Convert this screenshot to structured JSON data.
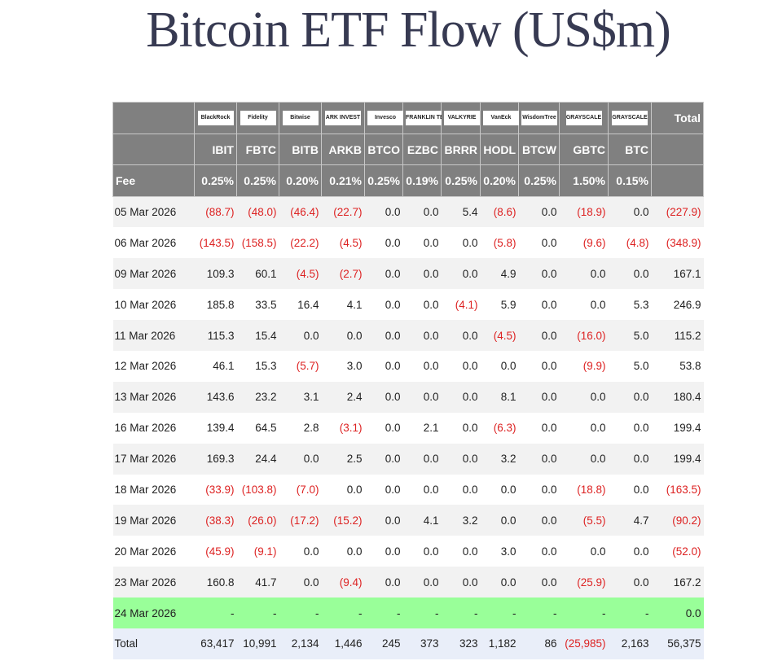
{
  "title": "Bitcoin ETF Flow (US$m)",
  "issuers": [
    "BlackRock",
    "Fidelity",
    "Bitwise",
    "ARK INVEST",
    "Invesco",
    "FRANKLIN TEMPLETON",
    "VALKYRIE",
    "VanEck",
    "WisdomTree",
    "GRAYSCALE",
    "GRAYSCALE"
  ],
  "total_header": "Total",
  "tickers": [
    "IBIT",
    "FBTC",
    "BITB",
    "ARKB",
    "BTCO",
    "EZBC",
    "BRRR",
    "HODL",
    "BTCW",
    "GBTC",
    "BTC"
  ],
  "fee_label": "Fee",
  "fees": [
    "0.25%",
    "0.25%",
    "0.20%",
    "0.21%",
    "0.25%",
    "0.19%",
    "0.25%",
    "0.20%",
    "0.25%",
    "1.50%",
    "0.15%"
  ],
  "colors": {
    "header": "#808080",
    "negative": "#dd2222",
    "pending": "#99ff99",
    "total_row": "#e9eef9"
  },
  "rows": [
    {
      "date": "05 Mar 2026",
      "values": [
        "(88.7)",
        "(48.0)",
        "(46.4)",
        "(22.7)",
        "0.0",
        "0.0",
        "5.4",
        "(8.6)",
        "0.0",
        "(18.9)",
        "0.0",
        "(227.9)"
      ]
    },
    {
      "date": "06 Mar 2026",
      "values": [
        "(143.5)",
        "(158.5)",
        "(22.2)",
        "(4.5)",
        "0.0",
        "0.0",
        "0.0",
        "(5.8)",
        "0.0",
        "(9.6)",
        "(4.8)",
        "(348.9)"
      ]
    },
    {
      "date": "09 Mar 2026",
      "values": [
        "109.3",
        "60.1",
        "(4.5)",
        "(2.7)",
        "0.0",
        "0.0",
        "0.0",
        "4.9",
        "0.0",
        "0.0",
        "0.0",
        "167.1"
      ]
    },
    {
      "date": "10 Mar 2026",
      "values": [
        "185.8",
        "33.5",
        "16.4",
        "4.1",
        "0.0",
        "0.0",
        "(4.1)",
        "5.9",
        "0.0",
        "0.0",
        "5.3",
        "246.9"
      ]
    },
    {
      "date": "11 Mar 2026",
      "values": [
        "115.3",
        "15.4",
        "0.0",
        "0.0",
        "0.0",
        "0.0",
        "0.0",
        "(4.5)",
        "0.0",
        "(16.0)",
        "5.0",
        "115.2"
      ]
    },
    {
      "date": "12 Mar 2026",
      "values": [
        "46.1",
        "15.3",
        "(5.7)",
        "3.0",
        "0.0",
        "0.0",
        "0.0",
        "0.0",
        "0.0",
        "(9.9)",
        "5.0",
        "53.8"
      ]
    },
    {
      "date": "13 Mar 2026",
      "values": [
        "143.6",
        "23.2",
        "3.1",
        "2.4",
        "0.0",
        "0.0",
        "0.0",
        "8.1",
        "0.0",
        "0.0",
        "0.0",
        "180.4"
      ]
    },
    {
      "date": "16 Mar 2026",
      "values": [
        "139.4",
        "64.5",
        "2.8",
        "(3.1)",
        "0.0",
        "2.1",
        "0.0",
        "(6.3)",
        "0.0",
        "0.0",
        "0.0",
        "199.4"
      ]
    },
    {
      "date": "17 Mar 2026",
      "values": [
        "169.3",
        "24.4",
        "0.0",
        "2.5",
        "0.0",
        "0.0",
        "0.0",
        "3.2",
        "0.0",
        "0.0",
        "0.0",
        "199.4"
      ]
    },
    {
      "date": "18 Mar 2026",
      "values": [
        "(33.9)",
        "(103.8)",
        "(7.0)",
        "0.0",
        "0.0",
        "0.0",
        "0.0",
        "0.0",
        "0.0",
        "(18.8)",
        "0.0",
        "(163.5)"
      ]
    },
    {
      "date": "19 Mar 2026",
      "values": [
        "(38.3)",
        "(26.0)",
        "(17.2)",
        "(15.2)",
        "0.0",
        "4.1",
        "3.2",
        "0.0",
        "0.0",
        "(5.5)",
        "4.7",
        "(90.2)"
      ]
    },
    {
      "date": "20 Mar 2026",
      "values": [
        "(45.9)",
        "(9.1)",
        "0.0",
        "0.0",
        "0.0",
        "0.0",
        "0.0",
        "3.0",
        "0.0",
        "0.0",
        "0.0",
        "(52.0)"
      ]
    },
    {
      "date": "23 Mar 2026",
      "values": [
        "160.8",
        "41.7",
        "0.0",
        "(9.4)",
        "0.0",
        "0.0",
        "0.0",
        "0.0",
        "0.0",
        "(25.9)",
        "0.0",
        "167.2"
      ]
    },
    {
      "date": "24 Mar 2026",
      "pending": true,
      "values": [
        "-",
        "-",
        "-",
        "-",
        "-",
        "-",
        "-",
        "-",
        "-",
        "-",
        "-",
        "0.0"
      ]
    }
  ],
  "totals": {
    "label": "Total",
    "values": [
      "63,417",
      "10,991",
      "2,134",
      "1,446",
      "245",
      "373",
      "323",
      "1,182",
      "86",
      "(25,985)",
      "2,163",
      "56,375"
    ]
  }
}
